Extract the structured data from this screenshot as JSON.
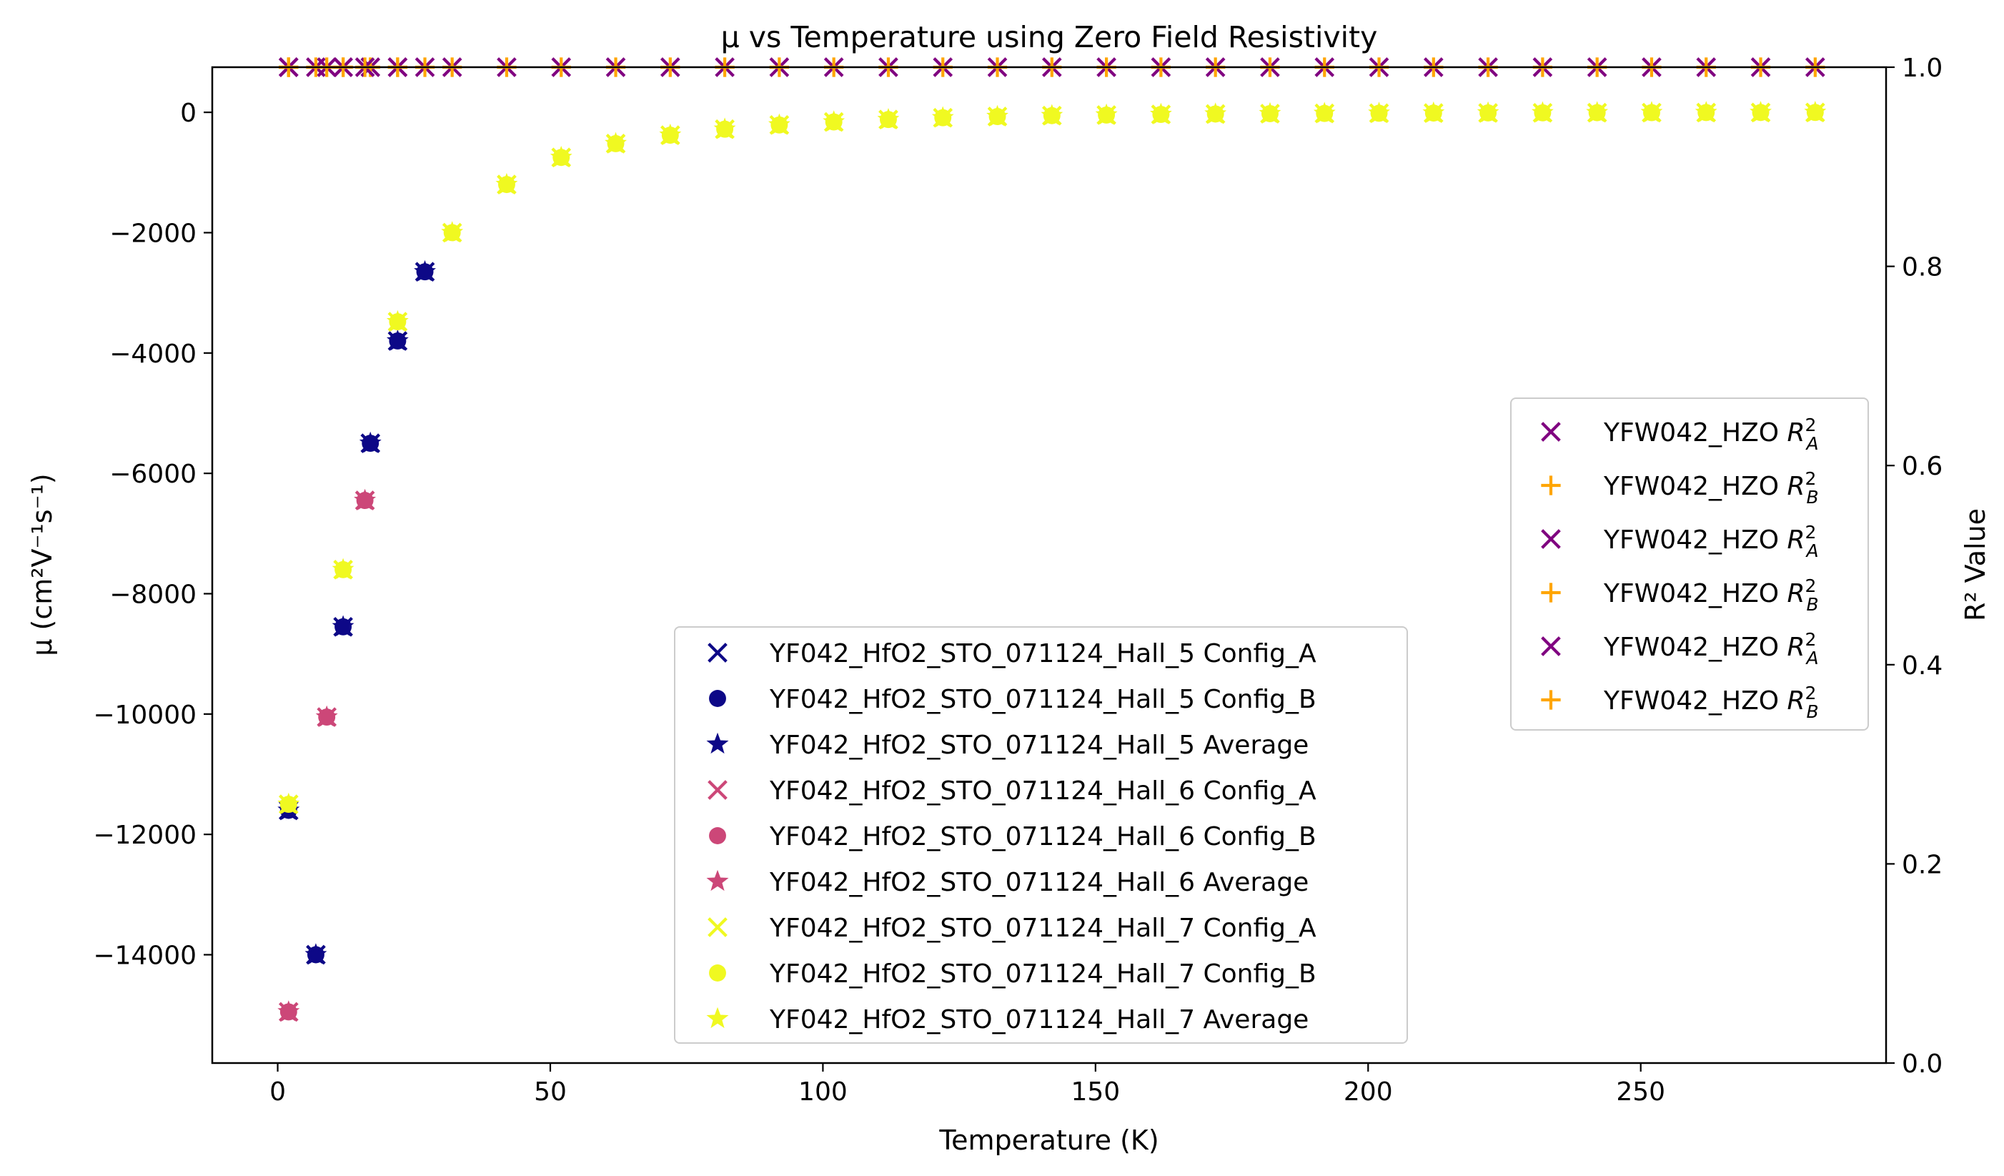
{
  "chart_data": {
    "type": "scatter",
    "title": "μ vs Temperature using Zero Field Resistivity",
    "xlabel": "Temperature (K)",
    "ylabel": "μ (cm²V⁻¹s⁻¹)",
    "y2label": "R² Value",
    "xlim": [
      -12,
      295
    ],
    "ylim": [
      -15800,
      750
    ],
    "y2lim": [
      0.0,
      1.0
    ],
    "xticks": [
      0,
      50,
      100,
      150,
      200,
      250
    ],
    "yticks": [
      0,
      -2000,
      -4000,
      -6000,
      -8000,
      -10000,
      -12000,
      -14000
    ],
    "y2ticks": [
      0.0,
      0.2,
      0.4,
      0.6,
      0.8,
      1.0
    ],
    "grid": false,
    "legend_left_position": "lower-center",
    "legend_right_position": "center-right",
    "series": [
      {
        "name": "YF042_HfO2_STO_071124_Hall_5 Config_A",
        "marker": "x",
        "color": "#0d0887",
        "axis": "left",
        "x": [
          2,
          7,
          12,
          17,
          22,
          27
        ],
        "y": [
          -11600,
          -14000,
          -8550,
          -5500,
          -3800,
          -2650
        ]
      },
      {
        "name": "YF042_HfO2_STO_071124_Hall_5 Config_B",
        "marker": "o",
        "color": "#0d0887",
        "axis": "left",
        "x": [
          2,
          7,
          12,
          17,
          22,
          27
        ],
        "y": [
          -11600,
          -14000,
          -8550,
          -5500,
          -3800,
          -2650
        ]
      },
      {
        "name": "YF042_HfO2_STO_071124_Hall_5 Average",
        "marker": "*",
        "color": "#0d0887",
        "axis": "left",
        "x": [
          2,
          7,
          12,
          17,
          22,
          27
        ],
        "y": [
          -11600,
          -14000,
          -8550,
          -5500,
          -3800,
          -2650
        ]
      },
      {
        "name": "YF042_HfO2_STO_071124_Hall_6 Config_A",
        "marker": "x",
        "color": "#cc4778",
        "axis": "left",
        "x": [
          2,
          9,
          16
        ],
        "y": [
          -14950,
          -10050,
          -6450
        ]
      },
      {
        "name": "YF042_HfO2_STO_071124_Hall_6 Config_B",
        "marker": "o",
        "color": "#cc4778",
        "axis": "left",
        "x": [
          2,
          9,
          16
        ],
        "y": [
          -14950,
          -10050,
          -6450
        ]
      },
      {
        "name": "YF042_HfO2_STO_071124_Hall_6 Average",
        "marker": "*",
        "color": "#cc4778",
        "axis": "left",
        "x": [
          2,
          9,
          16
        ],
        "y": [
          -14950,
          -10050,
          -6450
        ]
      },
      {
        "name": "YF042_HfO2_STO_071124_Hall_7 Config_A",
        "marker": "x",
        "color": "#f0f921",
        "axis": "left",
        "x": [
          2,
          12,
          22,
          32,
          42,
          52,
          62,
          72,
          82,
          92,
          102,
          112,
          122,
          132,
          142,
          152,
          162,
          172,
          182,
          192,
          202,
          212,
          222,
          232,
          242,
          252,
          262,
          272,
          282
        ],
        "y": [
          -11500,
          -7600,
          -3480,
          -2000,
          -1200,
          -750,
          -520,
          -380,
          -280,
          -210,
          -160,
          -120,
          -90,
          -70,
          -55,
          -45,
          -35,
          -28,
          -22,
          -18,
          -15,
          -12,
          -10,
          -8,
          -6,
          -5,
          -4,
          -3,
          -2
        ]
      },
      {
        "name": "YF042_HfO2_STO_071124_Hall_7 Config_B",
        "marker": "o",
        "color": "#f0f921",
        "axis": "left",
        "x": [
          2,
          12,
          22,
          32,
          42,
          52,
          62,
          72,
          82,
          92,
          102,
          112,
          122,
          132,
          142,
          152,
          162,
          172,
          182,
          192,
          202,
          212,
          222,
          232,
          242,
          252,
          262,
          272,
          282
        ],
        "y": [
          -11500,
          -7600,
          -3480,
          -2000,
          -1200,
          -750,
          -520,
          -380,
          -280,
          -210,
          -160,
          -120,
          -90,
          -70,
          -55,
          -45,
          -35,
          -28,
          -22,
          -18,
          -15,
          -12,
          -10,
          -8,
          -6,
          -5,
          -4,
          -3,
          -2
        ]
      },
      {
        "name": "YF042_HfO2_STO_071124_Hall_7 Average",
        "marker": "*",
        "color": "#f0f921",
        "axis": "left",
        "x": [
          2,
          12,
          22,
          32,
          42,
          52,
          62,
          72,
          82,
          92,
          102,
          112,
          122,
          132,
          142,
          152,
          162,
          172,
          182,
          192,
          202,
          212,
          222,
          232,
          242,
          252,
          262,
          272,
          282
        ],
        "y": [
          -11500,
          -7600,
          -3480,
          -2000,
          -1200,
          -750,
          -520,
          -380,
          -280,
          -210,
          -160,
          -120,
          -90,
          -70,
          -55,
          -45,
          -35,
          -28,
          -22,
          -18,
          -15,
          -12,
          -10,
          -8,
          -6,
          -5,
          -4,
          -3,
          -2
        ]
      },
      {
        "name": "YFW042_HZO R_A^2",
        "marker": "x",
        "color": "#800080",
        "axis": "right",
        "x": [
          2,
          7,
          12,
          17,
          22,
          27
        ],
        "y": [
          1.0,
          1.0,
          1.0,
          1.0,
          1.0,
          1.0
        ]
      },
      {
        "name": "YFW042_HZO R_B^2",
        "marker": "+",
        "color": "#ffa500",
        "axis": "right",
        "x": [
          2,
          7,
          12,
          17,
          22,
          27
        ],
        "y": [
          1.0,
          1.0,
          1.0,
          1.0,
          1.0,
          1.0
        ]
      },
      {
        "name": "YFW042_HZO R_A^2",
        "marker": "x",
        "color": "#800080",
        "axis": "right",
        "x": [
          2,
          9,
          16
        ],
        "y": [
          1.0,
          1.0,
          1.0
        ]
      },
      {
        "name": "YFW042_HZO R_B^2",
        "marker": "+",
        "color": "#ffa500",
        "axis": "right",
        "x": [
          2,
          9,
          16
        ],
        "y": [
          1.0,
          1.0,
          1.0
        ]
      },
      {
        "name": "YFW042_HZO R_A^2",
        "marker": "x",
        "color": "#800080",
        "axis": "right",
        "x": [
          2,
          12,
          22,
          32,
          42,
          52,
          62,
          72,
          82,
          92,
          102,
          112,
          122,
          132,
          142,
          152,
          162,
          172,
          182,
          192,
          202,
          212,
          222,
          232,
          242,
          252,
          262,
          272,
          282
        ],
        "y": [
          1.0,
          1.0,
          1.0,
          1.0,
          1.0,
          1.0,
          1.0,
          1.0,
          1.0,
          1.0,
          1.0,
          1.0,
          1.0,
          1.0,
          1.0,
          1.0,
          1.0,
          1.0,
          1.0,
          1.0,
          1.0,
          1.0,
          1.0,
          1.0,
          1.0,
          1.0,
          1.0,
          1.0,
          1.0
        ]
      },
      {
        "name": "YFW042_HZO R_B^2",
        "marker": "+",
        "color": "#ffa500",
        "axis": "right",
        "x": [
          2,
          12,
          22,
          32,
          42,
          52,
          62,
          72,
          82,
          92,
          102,
          112,
          122,
          132,
          142,
          152,
          162,
          172,
          182,
          192,
          202,
          212,
          222,
          232,
          242,
          252,
          262,
          272,
          282
        ],
        "y": [
          1.0,
          1.0,
          1.0,
          1.0,
          1.0,
          1.0,
          1.0,
          1.0,
          1.0,
          1.0,
          1.0,
          1.0,
          1.0,
          1.0,
          1.0,
          1.0,
          1.0,
          1.0,
          1.0,
          1.0,
          1.0,
          1.0,
          1.0,
          1.0,
          1.0,
          1.0,
          1.0,
          1.0,
          1.0
        ]
      }
    ],
    "legend_left": [
      {
        "label": "YF042_HfO2_STO_071124_Hall_5 Config_A",
        "marker": "x",
        "color": "#0d0887"
      },
      {
        "label": "YF042_HfO2_STO_071124_Hall_5 Config_B",
        "marker": "o",
        "color": "#0d0887"
      },
      {
        "label": "YF042_HfO2_STO_071124_Hall_5 Average",
        "marker": "*",
        "color": "#0d0887"
      },
      {
        "label": "YF042_HfO2_STO_071124_Hall_6 Config_A",
        "marker": "x",
        "color": "#cc4778"
      },
      {
        "label": "YF042_HfO2_STO_071124_Hall_6 Config_B",
        "marker": "o",
        "color": "#cc4778"
      },
      {
        "label": "YF042_HfO2_STO_071124_Hall_6 Average",
        "marker": "*",
        "color": "#cc4778"
      },
      {
        "label": "YF042_HfO2_STO_071124_Hall_7 Config_A",
        "marker": "x",
        "color": "#f0f921"
      },
      {
        "label": "YF042_HfO2_STO_071124_Hall_7 Config_B",
        "marker": "o",
        "color": "#f0f921"
      },
      {
        "label": "YF042_HfO2_STO_071124_Hall_7 Average",
        "marker": "*",
        "color": "#f0f921"
      }
    ],
    "legend_right": [
      {
        "label": "YFW042_HZO ",
        "sub": "A",
        "marker": "x",
        "color": "#800080"
      },
      {
        "label": "YFW042_HZO ",
        "sub": "B",
        "marker": "+",
        "color": "#ffa500"
      },
      {
        "label": "YFW042_HZO ",
        "sub": "A",
        "marker": "x",
        "color": "#800080"
      },
      {
        "label": "YFW042_HZO ",
        "sub": "B",
        "marker": "+",
        "color": "#ffa500"
      },
      {
        "label": "YFW042_HZO ",
        "sub": "A",
        "marker": "x",
        "color": "#800080"
      },
      {
        "label": "YFW042_HZO ",
        "sub": "B",
        "marker": "+",
        "color": "#ffa500"
      }
    ]
  }
}
